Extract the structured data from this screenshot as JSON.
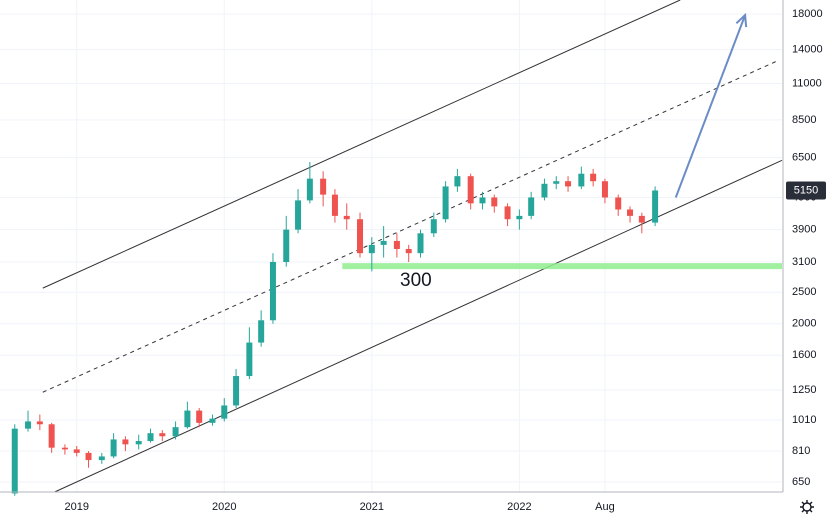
{
  "chart_data": {
    "type": "candlestick",
    "x": [
      2018.58,
      2018.67,
      2018.75,
      2018.83,
      2018.92,
      2019.0,
      2019.08,
      2019.17,
      2019.25,
      2019.33,
      2019.42,
      2019.5,
      2019.58,
      2019.67,
      2019.75,
      2019.83,
      2019.92,
      2020.0,
      2020.08,
      2020.17,
      2020.25,
      2020.33,
      2020.42,
      2020.5,
      2020.58,
      2020.67,
      2020.75,
      2020.83,
      2020.92,
      2021.0,
      2021.08,
      2021.17,
      2021.25,
      2021.33,
      2021.42,
      2021.5,
      2021.58,
      2021.67,
      2021.75,
      2021.83,
      2021.92,
      2022.0,
      2022.08,
      2022.17,
      2022.25,
      2022.33,
      2022.42,
      2022.5,
      2022.58,
      2022.67,
      2022.75,
      2022.83,
      2022.92
    ],
    "open": [
      600,
      950,
      1000,
      980,
      830,
      820,
      800,
      760,
      780,
      880,
      850,
      870,
      920,
      900,
      960,
      1080,
      990,
      1020,
      1120,
      1380,
      1750,
      2050,
      3100,
      3900,
      4800,
      5600,
      5000,
      4300,
      4200,
      3300,
      3500,
      3600,
      3400,
      3300,
      3800,
      4200,
      5300,
      5700,
      4700,
      4900,
      4600,
      4200,
      4300,
      4900,
      5400,
      5500,
      5300,
      5800,
      5500,
      4900,
      4500,
      4300,
      4100
    ],
    "high": [
      980,
      1080,
      1050,
      990,
      850,
      840,
      810,
      800,
      920,
      900,
      910,
      950,
      940,
      1000,
      1150,
      1100,
      1050,
      1180,
      1450,
      1950,
      2200,
      3300,
      4300,
      5200,
      6300,
      5900,
      5200,
      4700,
      4400,
      3700,
      4000,
      3800,
      3500,
      3900,
      4400,
      5500,
      6000,
      5800,
      5100,
      5000,
      4700,
      4500,
      5100,
      5600,
      5700,
      5700,
      6100,
      6000,
      5600,
      5000,
      4600,
      4400,
      5300
    ],
    "low": [
      590,
      930,
      940,
      800,
      790,
      780,
      720,
      740,
      770,
      810,
      820,
      860,
      870,
      880,
      950,
      960,
      970,
      1000,
      1100,
      1350,
      1700,
      2000,
      3000,
      3800,
      4700,
      4600,
      4100,
      3900,
      3200,
      2900,
      3200,
      3200,
      3100,
      3200,
      3700,
      4100,
      5100,
      4500,
      4500,
      4400,
      4000,
      3900,
      4200,
      4800,
      5200,
      5100,
      5200,
      5300,
      4700,
      4300,
      4100,
      3800,
      4000
    ],
    "close": [
      950,
      1000,
      980,
      830,
      820,
      800,
      760,
      780,
      880,
      850,
      870,
      920,
      900,
      960,
      1080,
      990,
      1020,
      1120,
      1380,
      1750,
      2050,
      3100,
      3900,
      4800,
      5600,
      5000,
      4300,
      4200,
      3300,
      3500,
      3600,
      3400,
      3300,
      3800,
      4200,
      5300,
      5700,
      4700,
      4900,
      4600,
      4200,
      4300,
      4900,
      5400,
      5500,
      5300,
      5800,
      5500,
      4900,
      4500,
      4300,
      4100,
      5150
    ],
    "up_color": "#26a69a",
    "down_color": "#ef5350",
    "log_scale": true,
    "grid": true,
    "xlim": [
      2018.48,
      2023.78
    ],
    "xticks": [
      2019,
      2020,
      2021,
      2022,
      {
        "value": 2022.58,
        "label": "Aug"
      }
    ],
    "ylim": [
      606,
      19900
    ],
    "yticks": [
      650,
      810,
      1010,
      1250,
      1600,
      2000,
      2500,
      3100,
      3900,
      4900,
      6500,
      8500,
      11000,
      14000,
      18000
    ],
    "last_price": 5150,
    "drawings": [
      {
        "x": [
          2018.77,
          2023.09
        ],
        "y": [
          2575,
          19900
        ],
        "color": "#333333",
        "dashed": false
      },
      {
        "x": [
          2018.77,
          2023.76
        ],
        "y": [
          1230,
          12990
        ],
        "color": "#333333",
        "dashed": true
      },
      {
        "x": [
          2018.85,
          2023.78
        ],
        "y": [
          606,
          6380
        ],
        "color": "#333333",
        "dashed": false
      }
    ],
    "support": {
      "x": [
        2020.8,
        2023.78
      ],
      "y": [
        3010,
        3010
      ],
      "color": "#90ee90"
    },
    "arrow": {
      "x": [
        2023.06,
        2023.53
      ],
      "y": [
        4900,
        17880
      ],
      "color": "#6b8cc7"
    },
    "annotation": "300"
  }
}
